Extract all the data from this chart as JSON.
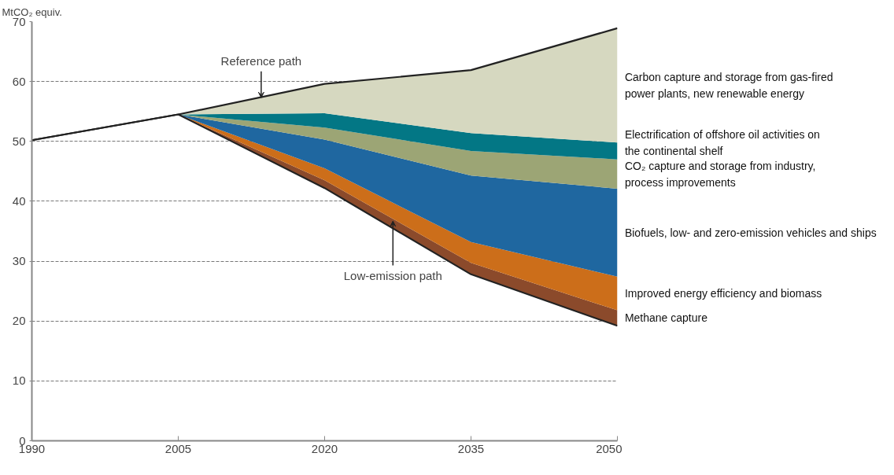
{
  "chart_data": {
    "type": "area",
    "ylabel": "MtCO₂ equiv.",
    "stacked": true,
    "x": [
      1990,
      2005,
      2020,
      2035,
      2050
    ],
    "xlim": [
      1990,
      2050
    ],
    "xticks": [
      1990,
      2005,
      2020,
      2035,
      2050
    ],
    "ylim": [
      0,
      70
    ],
    "yticks": [
      0,
      10,
      20,
      30,
      40,
      50,
      60,
      70
    ],
    "grid": "y",
    "line_style": "solid",
    "annotations": [
      {
        "text": "Reference path",
        "x": 2013.5,
        "y": 57.3
      },
      {
        "text": "Low-emission path",
        "x": 2027,
        "y": 36.7
      }
    ],
    "series": [
      {
        "color": "#ffffff",
        "values": [
          50.2,
          54.5,
          42.2,
          27.8,
          19.2
        ]
      },
      {
        "name": "Methane capture",
        "color": "#8b4a2b",
        "values": [
          0,
          0,
          1.3,
          1.9,
          2.6
        ]
      },
      {
        "name": "Improved energy efficiency and biomass",
        "color": "#cc6e1a",
        "values": [
          0,
          0,
          2.0,
          3.5,
          5.6
        ]
      },
      {
        "name": "Biofuels, low- and zero-emission vehicles and ships",
        "color": "#1f67a0",
        "values": [
          0,
          0,
          4.8,
          11.1,
          14.7
        ]
      },
      {
        "name": "CO₂ capture and storage from industry,\n  process improvements",
        "color": "#9ca575",
        "values": [
          0,
          0,
          2.0,
          4.1,
          4.9
        ]
      },
      {
        "name": "Electrification of offshore oil activities on\n  the continental shelf",
        "color": "#037785",
        "values": [
          0,
          0,
          2.4,
          3.0,
          2.8
        ]
      },
      {
        "name": "Carbon capture and storage from gas-fired\n  power plants, new renewable energy",
        "color": "#d6d8c0",
        "values": [
          0,
          0,
          4.9,
          10.5,
          19.1
        ]
      }
    ]
  }
}
